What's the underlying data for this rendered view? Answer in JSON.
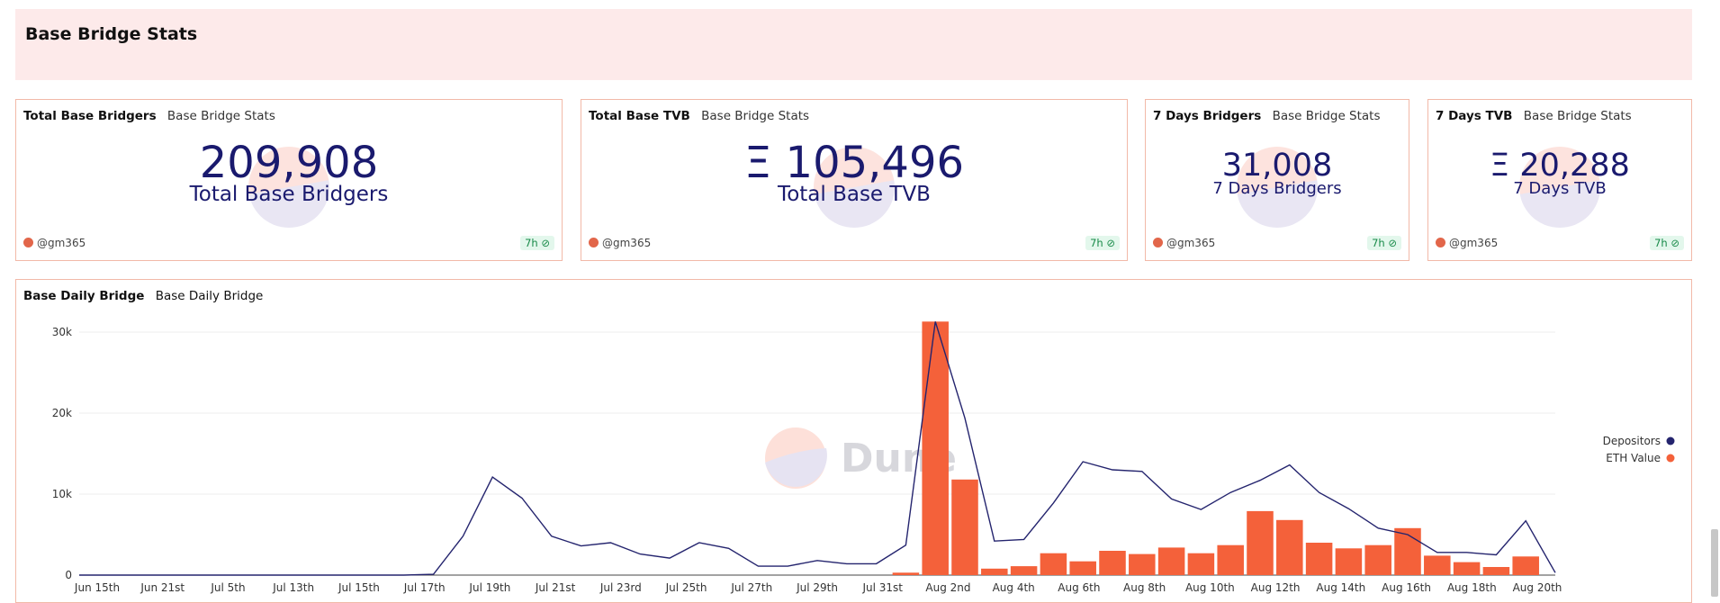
{
  "header": {
    "title": "Base Bridge Stats"
  },
  "counters": [
    {
      "title": "Total Base Bridgers",
      "subtitle": "Base Bridge Stats",
      "value": "209,908",
      "label": "Total Base Bridgers",
      "user": "@gm365",
      "badge": "7h ⊘"
    },
    {
      "title": "Total Base TVB",
      "subtitle": "Base Bridge Stats",
      "value": "Ξ 105,496",
      "label": "Total Base TVB",
      "user": "@gm365",
      "badge": "7h ⊘"
    },
    {
      "title": "7 Days Bridgers",
      "subtitle": "Base Bridge Stats",
      "value": "31,008",
      "label": "7 Days Bridgers",
      "user": "@gm365",
      "badge": "7h ⊘"
    },
    {
      "title": "7 Days TVB",
      "subtitle": "Base Bridge Stats",
      "value": "Ξ 20,288",
      "label": "7 Days TVB",
      "user": "@gm365",
      "badge": "7h ⊘"
    }
  ],
  "chart_card": {
    "title": "Base Daily Bridge",
    "subtitle": "Base Daily Bridge",
    "watermark": "Dune"
  },
  "chart_data": {
    "type": "bar",
    "title": "Base Daily Bridge",
    "ylim": [
      0,
      31000
    ],
    "yticks": [
      0,
      10000,
      20000,
      30000
    ],
    "ytick_labels": [
      "0",
      "10k",
      "20k",
      "30k"
    ],
    "xtick_labels": [
      "Jun 15th",
      "Jun 21st",
      "Jul 5th",
      "Jul 13th",
      "Jul 15th",
      "Jul 17th",
      "Jul 19th",
      "Jul 21st",
      "Jul 23rd",
      "Jul 25th",
      "Jul 27th",
      "Jul 29th",
      "Jul 31st",
      "Aug 2nd",
      "Aug 4th",
      "Aug 6th",
      "Aug 8th",
      "Aug 10th",
      "Aug 12th",
      "Aug 14th",
      "Aug 16th",
      "Aug 18th",
      "Aug 20th"
    ],
    "legend_position": "right",
    "grid": true,
    "colors": {
      "depositors": "#24246e",
      "eth_value": "#f4613a"
    },
    "series": [
      {
        "name": "Depositors",
        "type": "line",
        "values": [
          0,
          0,
          0,
          0,
          0,
          0,
          0,
          0,
          0,
          0,
          0,
          0,
          100,
          4800,
          12100,
          9500,
          4800,
          3600,
          4000,
          2600,
          2100,
          4000,
          3300,
          1100,
          1100,
          1800,
          1400,
          1400,
          3700,
          31300,
          19400,
          4200,
          4400,
          8900,
          14000,
          13000,
          12800,
          9400,
          8100,
          10200,
          11700,
          13600,
          10200,
          8200,
          5800,
          5000,
          2800,
          2800,
          2500,
          6700,
          300
        ]
      },
      {
        "name": "ETH Value",
        "type": "bar",
        "values": [
          0,
          0,
          0,
          0,
          0,
          0,
          0,
          0,
          0,
          0,
          0,
          0,
          0,
          0,
          0,
          0,
          0,
          0,
          0,
          0,
          0,
          0,
          0,
          0,
          0,
          0,
          0,
          0,
          300,
          31300,
          11800,
          800,
          1100,
          2700,
          1700,
          3000,
          2600,
          3400,
          2700,
          3700,
          7900,
          6800,
          4000,
          3300,
          3700,
          5800,
          2400,
          1600,
          1000,
          2300,
          0
        ]
      }
    ]
  }
}
